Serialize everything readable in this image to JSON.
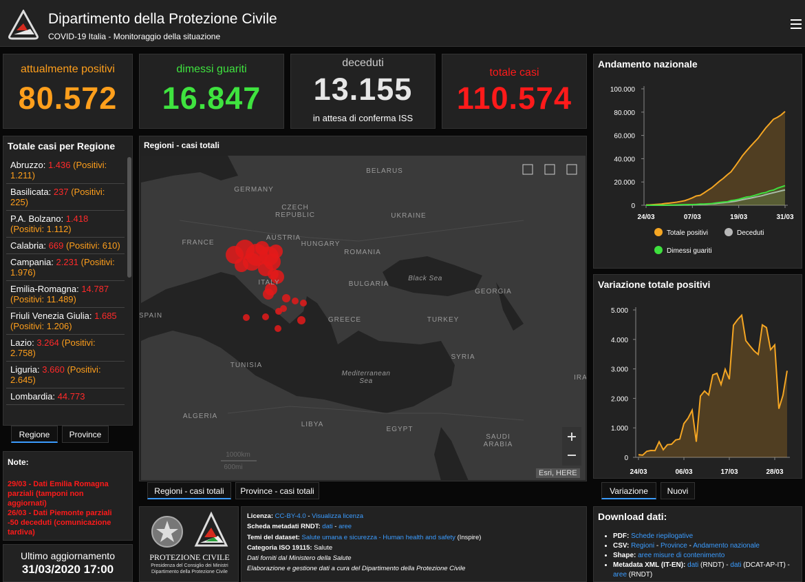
{
  "header": {
    "title": "Dipartimento della Protezione Civile",
    "subtitle": "COVID-19 Italia - Monitoraggio della situazione"
  },
  "counters": [
    {
      "label": "attualmente positivi",
      "value": "80.572",
      "color": "#ff9f1c"
    },
    {
      "label": "dimessi guariti",
      "value": "16.847",
      "color": "#3fe33f"
    },
    {
      "label": "deceduti",
      "value": "13.155",
      "note": "in attesa di conferma ISS",
      "color": "#e6e6e6"
    },
    {
      "label": "totale casi",
      "value": "110.574",
      "color": "#ff1a1a"
    }
  ],
  "regions": {
    "title": "Totale casi per Regione",
    "items": [
      {
        "name": "Abruzzo:",
        "total": "1.436",
        "positivi": "(Positivi: 1.211)"
      },
      {
        "name": "Basilicata:",
        "total": "237",
        "positivi": "(Positivi: 225)"
      },
      {
        "name": "P.A. Bolzano:",
        "total": "1.418",
        "positivi": "(Positivi: 1.112)"
      },
      {
        "name": "Calabria:",
        "total": "669",
        "positivi": "(Positivi: 610)"
      },
      {
        "name": "Campania:",
        "total": "2.231",
        "positivi": "(Positivi: 1.976)"
      },
      {
        "name": "Emilia-Romagna:",
        "total": "14.787",
        "positivi": "(Positivi: 11.489)"
      },
      {
        "name": "Friuli Venezia Giulia:",
        "total": "1.685",
        "positivi": "(Positivi: 1.206)"
      },
      {
        "name": "Lazio:",
        "total": "3.264",
        "positivi": "(Positivi: 2.758)"
      },
      {
        "name": "Liguria:",
        "total": "3.660",
        "positivi": "(Positivi: 2.645)"
      },
      {
        "name": "Lombardia:",
        "total": "44.773"
      }
    ],
    "tabs": [
      "Regione",
      "Province"
    ]
  },
  "notes": {
    "title": "Note:",
    "items": [
      "29/03 - Dati  Emilia Romagna parziali (tamponi non aggiornati)",
      "26/03 - Dati Piemonte parziali -50 deceduti (comunicazione tardiva)"
    ]
  },
  "update": {
    "label": "Ultimo aggiornamento",
    "date": "31/03/2020 17:00"
  },
  "map": {
    "title": "Regioni - casi totali",
    "labels": [
      "BELARUS",
      "GERMANY",
      "CZECH REPUBLIC",
      "UKRAINE",
      "FRANCE",
      "AUSTRIA",
      "HUNGARY",
      "ROMANIA",
      "ITALY",
      "Black Sea",
      "BULGARIA",
      "GEORGIA",
      "SPAIN",
      "GREECE",
      "TURKEY",
      "SYRIA",
      "TUNISIA",
      "Mediterranean Sea",
      "IRA",
      "ALGERIA",
      "LIBYA",
      "EGYPT",
      "SAUDI ARABIA"
    ],
    "scale": [
      "1000km",
      "600mi"
    ],
    "attribution": "Esri, HERE",
    "tabs": [
      "Regioni - casi totali",
      "Province - casi totali"
    ]
  },
  "logo": {
    "name": "PROTEZIONE CIVILE",
    "lines": [
      "Presidenza del Consiglio dei Ministri",
      "Dipartimento della Protezione Civile"
    ]
  },
  "license": [
    [
      {
        "text": "Licenza: ",
        "kind": "label"
      },
      {
        "text": "CC-BY-4.0",
        "kind": "link"
      },
      {
        "text": " - ",
        "kind": "plain"
      },
      {
        "text": "Visualizza licenza",
        "kind": "link"
      }
    ],
    [
      {
        "text": "Scheda metadati RNDT: ",
        "kind": "label"
      },
      {
        "text": "dati",
        "kind": "link"
      },
      {
        "text": " - ",
        "kind": "plain"
      },
      {
        "text": "aree",
        "kind": "link"
      }
    ],
    [
      {
        "text": "Temi del dataset: ",
        "kind": "label"
      },
      {
        "text": "Salute umana e sicurezza - Human health and safety",
        "kind": "link"
      },
      {
        "text": " (Inspire)",
        "kind": "plain"
      }
    ],
    [
      {
        "text": "Categoria ISO 19115: ",
        "kind": "label"
      },
      {
        "text": "Salute",
        "kind": "plain"
      }
    ],
    [
      {
        "text": "Dati forniti dal Ministero della Salute",
        "kind": "italic"
      }
    ],
    [
      {
        "text": "Elaborazione e gestione dati a cura del Dipartimento della Protezione Civile",
        "kind": "italic"
      }
    ]
  ],
  "download": {
    "title": "Download dati:",
    "items": [
      [
        {
          "text": "PDF: ",
          "kind": "label"
        },
        {
          "text": "Schede riepilogative",
          "kind": "link"
        }
      ],
      [
        {
          "text": "CSV: ",
          "kind": "label"
        },
        {
          "text": "Regioni",
          "kind": "link"
        },
        {
          "text": " - ",
          "kind": "plain"
        },
        {
          "text": "Province",
          "kind": "link"
        },
        {
          "text": " - ",
          "kind": "plain"
        },
        {
          "text": "Andamento nazionale",
          "kind": "link"
        }
      ],
      [
        {
          "text": "Shape: ",
          "kind": "label"
        },
        {
          "text": "aree misure di contenimento",
          "kind": "link"
        }
      ],
      [
        {
          "text": "Metadata XML (IT-EN): ",
          "kind": "label"
        },
        {
          "text": "dati",
          "kind": "link"
        },
        {
          "text": " (RNDT) - ",
          "kind": "plain"
        },
        {
          "text": "dati",
          "kind": "link"
        },
        {
          "text": " (DCAT-AP-IT) - ",
          "kind": "plain"
        },
        {
          "text": "aree",
          "kind": "link"
        },
        {
          "text": " (RNDT)",
          "kind": "plain"
        }
      ]
    ]
  },
  "chart_tabs": [
    "Variazione",
    "Nuovi"
  ],
  "chart_data": [
    {
      "type": "area",
      "title": "Andamento nazionale",
      "categories": [
        "24/03",
        null,
        null,
        null,
        null,
        null,
        null,
        null,
        null,
        null,
        null,
        null,
        "07/03",
        null,
        null,
        null,
        null,
        null,
        null,
        null,
        null,
        null,
        null,
        null,
        "19/03",
        null,
        null,
        null,
        null,
        null,
        null,
        null,
        null,
        null,
        null,
        null,
        "31/03"
      ],
      "series": [
        {
          "name": "Totale positivi",
          "color": "#f5a623",
          "values": [
            311,
            385,
            588,
            821,
            1049,
            1577,
            1835,
            2263,
            2706,
            3296,
            3916,
            5061,
            6387,
            7985,
            8514,
            10590,
            12839,
            14955,
            17750,
            20603,
            23073,
            26062,
            28710,
            33190,
            37860,
            42681,
            46638,
            50418,
            54030,
            57521,
            62013,
            66414,
            70065,
            73880,
            75528,
            77635,
            80572
          ]
        },
        {
          "name": "Deceduti",
          "color": "#b8b8b8",
          "values": [
            10,
            12,
            17,
            21,
            29,
            34,
            52,
            79,
            107,
            148,
            197,
            233,
            366,
            463,
            631,
            827,
            1016,
            1266,
            1441,
            1809,
            2158,
            2503,
            2978,
            3405,
            4032,
            4825,
            5476,
            6077,
            6820,
            7503,
            8165,
            9134,
            10023,
            10779,
            11591,
            12428,
            13155
          ]
        },
        {
          "name": "Dimessi guariti",
          "color": "#3ee03e",
          "values": [
            1,
            3,
            45,
            46,
            46,
            83,
            149,
            160,
            276,
            414,
            523,
            589,
            622,
            724,
            1004,
            1045,
            1258,
            1439,
            1966,
            2335,
            2749,
            2941,
            4025,
            4440,
            5129,
            6072,
            7024,
            7432,
            8326,
            9362,
            10361,
            10950,
            12384,
            13030,
            14620,
            15729,
            16847
          ]
        }
      ],
      "ylim": [
        0,
        100000
      ],
      "yticks": [
        0,
        {
          "value": 20000,
          "label": "20.000"
        },
        {
          "value": 40000,
          "label": "40.000"
        },
        {
          "value": 60000,
          "label": "60.000"
        },
        {
          "value": 80000,
          "label": "80.000"
        },
        {
          "value": 100000,
          "label": "100.000"
        }
      ],
      "grid": false,
      "legend": "bottom"
    },
    {
      "type": "area",
      "title": "Variazione totale positivi",
      "categories": [
        "24/03",
        null,
        null,
        null,
        null,
        null,
        null,
        null,
        null,
        null,
        null,
        "06/03",
        null,
        null,
        null,
        null,
        null,
        null,
        null,
        null,
        null,
        null,
        "17/03",
        null,
        null,
        null,
        null,
        null,
        null,
        null,
        null,
        null,
        null,
        "28/03",
        null,
        null,
        null
      ],
      "series": [
        {
          "name": "Variazione",
          "color": "#f5a623",
          "values": [
            90,
            74,
            203,
            233,
            228,
            528,
            258,
            428,
            443,
            590,
            620,
            1145,
            1326,
            1598,
            529,
            2076,
            2249,
            2116,
            2795,
            2853,
            2470,
            2989,
            2648,
            4480,
            4670,
            4821,
            3957,
            3780,
            3612,
            3491,
            4492,
            4401,
            3651,
            3815,
            1648,
            2107,
            2937
          ]
        }
      ],
      "ylim": [
        0,
        5000
      ],
      "yticks": [
        0,
        {
          "value": 1000,
          "label": "1.000"
        },
        {
          "value": 2000,
          "label": "2.000"
        },
        {
          "value": 3000,
          "label": "3.000"
        },
        {
          "value": 4000,
          "label": "4.000"
        },
        {
          "value": 5000,
          "label": "5.000"
        }
      ],
      "grid": false,
      "legend": "none"
    }
  ]
}
